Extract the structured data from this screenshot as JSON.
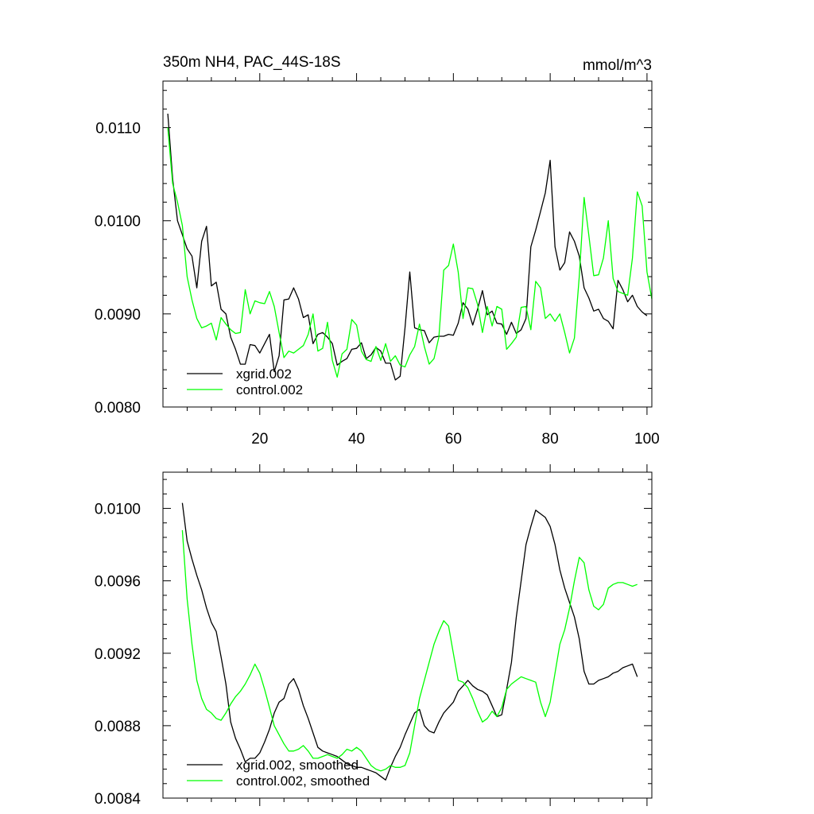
{
  "chart_data": [
    {
      "type": "line",
      "title_left": "350m NH4, PAC_44S-18S",
      "title_right": "mmol/m^3",
      "xlabel": "",
      "ylabel": "",
      "xlim": [
        0,
        101
      ],
      "ylim": [
        0.008,
        0.0115
      ],
      "xticks": [
        20,
        40,
        60,
        80,
        100
      ],
      "xtick_labels": [
        "20",
        "40",
        "60",
        "80",
        "100"
      ],
      "yticks": [
        0.008,
        0.009,
        0.01,
        0.011
      ],
      "ytick_labels": [
        "0.0080",
        "0.0090",
        "0.0100",
        "0.0110"
      ],
      "legend": "bottom-left",
      "series": [
        {
          "name": "xgrid.002",
          "color": "#000000",
          "x": [
            1,
            2,
            3,
            4,
            5,
            6,
            7,
            8,
            9,
            10,
            11,
            12,
            13,
            14,
            15,
            16,
            17,
            18,
            19,
            20,
            21,
            22,
            23,
            24,
            25,
            26,
            27,
            28,
            29,
            30,
            31,
            32,
            33,
            34,
            35,
            36,
            37,
            38,
            39,
            40,
            41,
            42,
            43,
            44,
            45,
            46,
            47,
            48,
            49,
            50,
            51,
            52,
            53,
            54,
            55,
            56,
            57,
            58,
            59,
            60,
            61,
            62,
            63,
            64,
            65,
            66,
            67,
            68,
            69,
            70,
            71,
            72,
            73,
            74,
            75,
            76,
            77,
            78,
            79,
            80,
            81,
            82,
            83,
            84,
            85,
            86,
            87,
            88,
            89,
            90,
            91,
            92,
            93,
            94,
            95,
            96,
            97,
            98,
            99,
            100
          ],
          "values": [
            0.01115,
            0.01045,
            0.01,
            0.00985,
            0.0097,
            0.00962,
            0.00928,
            0.00978,
            0.00994,
            0.0093,
            0.00934,
            0.00905,
            0.009,
            0.00875,
            0.00862,
            0.00846,
            0.00846,
            0.00867,
            0.00866,
            0.00858,
            0.00868,
            0.00878,
            0.00838,
            0.00855,
            0.00915,
            0.00916,
            0.00928,
            0.00916,
            0.00896,
            0.00899,
            0.00868,
            0.00878,
            0.0088,
            0.00875,
            0.00868,
            0.00845,
            0.00849,
            0.00852,
            0.00862,
            0.00863,
            0.00869,
            0.00852,
            0.00856,
            0.00864,
            0.0086,
            0.00847,
            0.00847,
            0.00829,
            0.00833,
            0.00885,
            0.00945,
            0.00885,
            0.00883,
            0.00882,
            0.00869,
            0.00875,
            0.00876,
            0.00876,
            0.00878,
            0.00877,
            0.0089,
            0.00912,
            0.00905,
            0.00888,
            0.00905,
            0.00925,
            0.00899,
            0.00903,
            0.0089,
            0.00889,
            0.00878,
            0.00891,
            0.00879,
            0.00883,
            0.00895,
            0.00972,
            0.0099,
            0.0101,
            0.0103,
            0.01065,
            0.00972,
            0.00947,
            0.00955,
            0.00988,
            0.00978,
            0.00962,
            0.00928,
            0.00917,
            0.00903,
            0.00905,
            0.00895,
            0.00892,
            0.00884,
            0.00936,
            0.00926,
            0.00913,
            0.0092,
            0.00908,
            0.00902,
            0.00898
          ]
        },
        {
          "name": "control.002",
          "color": "#00ff00",
          "x": [
            1,
            2,
            3,
            4,
            5,
            6,
            7,
            8,
            9,
            10,
            11,
            12,
            13,
            14,
            15,
            16,
            17,
            18,
            19,
            20,
            21,
            22,
            23,
            24,
            25,
            26,
            27,
            28,
            29,
            30,
            31,
            32,
            33,
            34,
            35,
            36,
            37,
            38,
            39,
            40,
            41,
            42,
            43,
            44,
            45,
            46,
            47,
            48,
            49,
            50,
            51,
            52,
            53,
            54,
            55,
            56,
            57,
            58,
            59,
            60,
            61,
            62,
            63,
            64,
            65,
            66,
            67,
            68,
            69,
            70,
            71,
            72,
            73,
            74,
            75,
            76,
            77,
            78,
            79,
            80,
            81,
            82,
            83,
            84,
            85,
            86,
            87,
            88,
            89,
            90,
            91,
            92,
            93,
            94,
            95,
            96,
            97,
            98,
            99,
            100,
            101
          ],
          "values": [
            0.011,
            0.0104,
            0.0102,
            0.00995,
            0.0094,
            0.00915,
            0.00895,
            0.00885,
            0.00887,
            0.0089,
            0.00872,
            0.00896,
            0.00889,
            0.00883,
            0.00879,
            0.0088,
            0.00926,
            0.009,
            0.00914,
            0.00912,
            0.00911,
            0.00924,
            0.00908,
            0.0088,
            0.00853,
            0.0086,
            0.00858,
            0.00862,
            0.00866,
            0.00878,
            0.009,
            0.0086,
            0.00863,
            0.00891,
            0.0085,
            0.00832,
            0.00857,
            0.00862,
            0.00894,
            0.00888,
            0.0086,
            0.00851,
            0.00849,
            0.00865,
            0.0085,
            0.00868,
            0.00849,
            0.00855,
            0.00845,
            0.00843,
            0.00856,
            0.00865,
            0.00889,
            0.00865,
            0.00846,
            0.00852,
            0.00875,
            0.00947,
            0.00952,
            0.00975,
            0.00945,
            0.00895,
            0.00928,
            0.00927,
            0.0091,
            0.0088,
            0.00908,
            0.00887,
            0.00908,
            0.00905,
            0.00862,
            0.00868,
            0.00875,
            0.00907,
            0.00908,
            0.00883,
            0.00935,
            0.00928,
            0.00895,
            0.009,
            0.00892,
            0.009,
            0.0088,
            0.00858,
            0.00874,
            0.0094,
            0.01025,
            0.00984,
            0.00941,
            0.00942,
            0.0096,
            0.01,
            0.00938,
            0.00924,
            0.00922,
            0.0092,
            0.0096,
            0.01031,
            0.01016,
            0.00945,
            0.00916
          ]
        }
      ]
    },
    {
      "type": "line",
      "title_left": "",
      "title_right": "",
      "xlabel": "",
      "ylabel": "",
      "xlim": [
        0,
        101
      ],
      "ylim": [
        0.0084,
        0.0102
      ],
      "xticks": [
        20,
        40,
        60,
        80,
        100
      ],
      "xtick_labels": [],
      "yticks": [
        0.0084,
        0.0088,
        0.0092,
        0.0096,
        0.01
      ],
      "ytick_labels": [
        "0.0084",
        "0.0088",
        "0.0092",
        "0.0096",
        "0.0100"
      ],
      "legend": "bottom-left",
      "series": [
        {
          "name": "xgrid.002, smoothed",
          "color": "#000000",
          "x": [
            4,
            5,
            6,
            7,
            8,
            9,
            10,
            11,
            12,
            13,
            14,
            15,
            16,
            17,
            18,
            19,
            20,
            21,
            22,
            23,
            24,
            25,
            26,
            27,
            28,
            29,
            30,
            31,
            32,
            33,
            34,
            35,
            36,
            37,
            38,
            39,
            40,
            41,
            42,
            43,
            44,
            45,
            46,
            47,
            48,
            49,
            50,
            51,
            52,
            53,
            54,
            55,
            56,
            57,
            58,
            59,
            60,
            61,
            62,
            63,
            64,
            65,
            66,
            67,
            68,
            69,
            70,
            71,
            72,
            73,
            74,
            75,
            76,
            77,
            78,
            79,
            80,
            81,
            82,
            83,
            84,
            85,
            86,
            87,
            88,
            89,
            90,
            91,
            92,
            93,
            94,
            95,
            96,
            97,
            98
          ],
          "values": [
            0.01003,
            0.00982,
            0.00972,
            0.00963,
            0.00955,
            0.00945,
            0.00937,
            0.00932,
            0.00918,
            0.00903,
            0.00882,
            0.00873,
            0.00867,
            0.0086,
            0.00862,
            0.00862,
            0.00865,
            0.00871,
            0.00878,
            0.00887,
            0.00893,
            0.00895,
            0.00903,
            0.00906,
            0.009,
            0.00891,
            0.00884,
            0.00876,
            0.00868,
            0.00866,
            0.00865,
            0.00864,
            0.00863,
            0.00861,
            0.00859,
            0.00858,
            0.00857,
            0.00857,
            0.00856,
            0.00855,
            0.00854,
            0.00852,
            0.0085,
            0.00857,
            0.00863,
            0.00868,
            0.00875,
            0.00881,
            0.00887,
            0.00889,
            0.0088,
            0.00877,
            0.00876,
            0.00882,
            0.00887,
            0.0089,
            0.00893,
            0.00899,
            0.00902,
            0.00905,
            0.00902,
            0.009,
            0.00899,
            0.00897,
            0.00891,
            0.00885,
            0.00886,
            0.009,
            0.00915,
            0.0094,
            0.0096,
            0.0098,
            0.0099,
            0.00999,
            0.00997,
            0.00995,
            0.0099,
            0.0098,
            0.00966,
            0.00956,
            0.00948,
            0.0094,
            0.00928,
            0.0091,
            0.00903,
            0.00903,
            0.00905,
            0.00906,
            0.00907,
            0.00909,
            0.0091,
            0.00912,
            0.00913,
            0.00914,
            0.00907
          ]
        },
        {
          "name": "control.002, smoothed",
          "color": "#00ff00",
          "x": [
            4,
            5,
            6,
            7,
            8,
            9,
            10,
            11,
            12,
            13,
            14,
            15,
            16,
            17,
            18,
            19,
            20,
            21,
            22,
            23,
            24,
            25,
            26,
            27,
            28,
            29,
            30,
            31,
            32,
            33,
            34,
            35,
            36,
            37,
            38,
            39,
            40,
            41,
            42,
            43,
            44,
            45,
            46,
            47,
            48,
            49,
            50,
            51,
            52,
            53,
            54,
            55,
            56,
            57,
            58,
            59,
            60,
            61,
            62,
            63,
            64,
            65,
            66,
            67,
            68,
            69,
            70,
            71,
            72,
            73,
            74,
            75,
            76,
            77,
            78,
            79,
            80,
            81,
            82,
            83,
            84,
            85,
            86,
            87,
            88,
            89,
            90,
            91,
            92,
            93,
            94,
            95,
            96,
            97,
            98
          ],
          "values": [
            0.00988,
            0.0095,
            0.00925,
            0.00905,
            0.00895,
            0.00889,
            0.00887,
            0.00884,
            0.00883,
            0.00887,
            0.00892,
            0.00896,
            0.00899,
            0.00903,
            0.00908,
            0.00914,
            0.00909,
            0.009,
            0.0089,
            0.0088,
            0.00875,
            0.0087,
            0.00866,
            0.00866,
            0.00867,
            0.00869,
            0.00866,
            0.00862,
            0.00862,
            0.00863,
            0.00864,
            0.00863,
            0.00862,
            0.00864,
            0.00867,
            0.00866,
            0.00868,
            0.00866,
            0.00862,
            0.00858,
            0.00856,
            0.00855,
            0.00856,
            0.00858,
            0.00857,
            0.00857,
            0.00858,
            0.00865,
            0.0088,
            0.00895,
            0.00905,
            0.00915,
            0.00925,
            0.00932,
            0.00938,
            0.00935,
            0.0092,
            0.00905,
            0.00904,
            0.00901,
            0.00895,
            0.00888,
            0.00882,
            0.00884,
            0.00888,
            0.00885,
            0.0089,
            0.009,
            0.00903,
            0.00905,
            0.00907,
            0.00906,
            0.00905,
            0.00904,
            0.00893,
            0.00885,
            0.00893,
            0.00909,
            0.00925,
            0.00933,
            0.00945,
            0.0096,
            0.00973,
            0.0097,
            0.00955,
            0.00946,
            0.00944,
            0.00947,
            0.00956,
            0.00958,
            0.00959,
            0.00959,
            0.00958,
            0.00957,
            0.00958
          ]
        }
      ]
    }
  ]
}
